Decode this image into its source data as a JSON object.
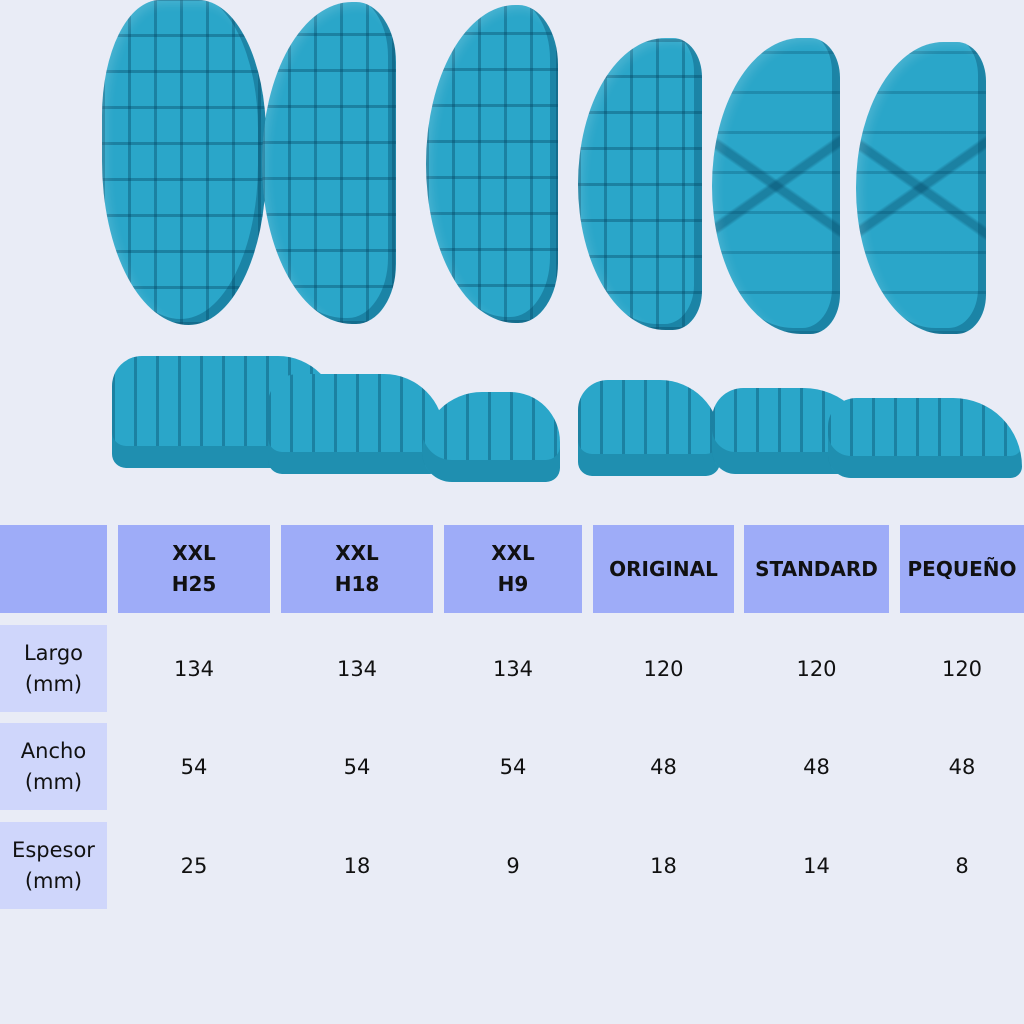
{
  "colors": {
    "background": "#e9ecf6",
    "header": "#9eacf8",
    "row_label": "#cfd6fb",
    "product": "#2aa6c9"
  },
  "table": {
    "columns": [
      "XXL\nH25",
      "XXL\nH18",
      "XXL\nH9",
      "ORIGINAL",
      "STANDARD",
      "PEQUEÑO"
    ],
    "rows": [
      {
        "label": "Largo\n(mm)",
        "values": [
          "134",
          "134",
          "134",
          "120",
          "120",
          "120"
        ]
      },
      {
        "label": "Ancho\n(mm)",
        "values": [
          "54",
          "54",
          "54",
          "48",
          "48",
          "48"
        ]
      },
      {
        "label": "Espesor\n(mm)",
        "values": [
          "25",
          "18",
          "9",
          "18",
          "14",
          "8"
        ]
      }
    ]
  }
}
